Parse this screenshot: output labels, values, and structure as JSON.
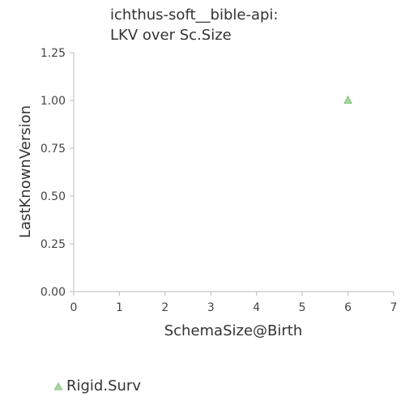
{
  "title": {
    "line1": "ichthus-soft__bible-api:",
    "line2": "LKV over Sc.Size"
  },
  "chart_data": {
    "type": "scatter",
    "title": "ichthus-soft__bible-api: LKV over Sc.Size",
    "xlabel": "SchemaSize@Birth",
    "ylabel": "LastKnownVersion",
    "xlim": [
      0,
      7
    ],
    "ylim": [
      0,
      1.25
    ],
    "x_ticks": [
      "0",
      "1",
      "2",
      "3",
      "4",
      "5",
      "6",
      "7"
    ],
    "y_ticks": [
      "0.00",
      "0.25",
      "0.50",
      "0.75",
      "1.00",
      "1.25"
    ],
    "grid": false,
    "legend_position": "bottom-left",
    "series": [
      {
        "name": "Rigid.Surv",
        "marker": "triangle",
        "color": "#a8d8a0",
        "stroke": "#7fc07a",
        "points": [
          {
            "x": 6,
            "y": 1.0
          }
        ]
      }
    ]
  }
}
